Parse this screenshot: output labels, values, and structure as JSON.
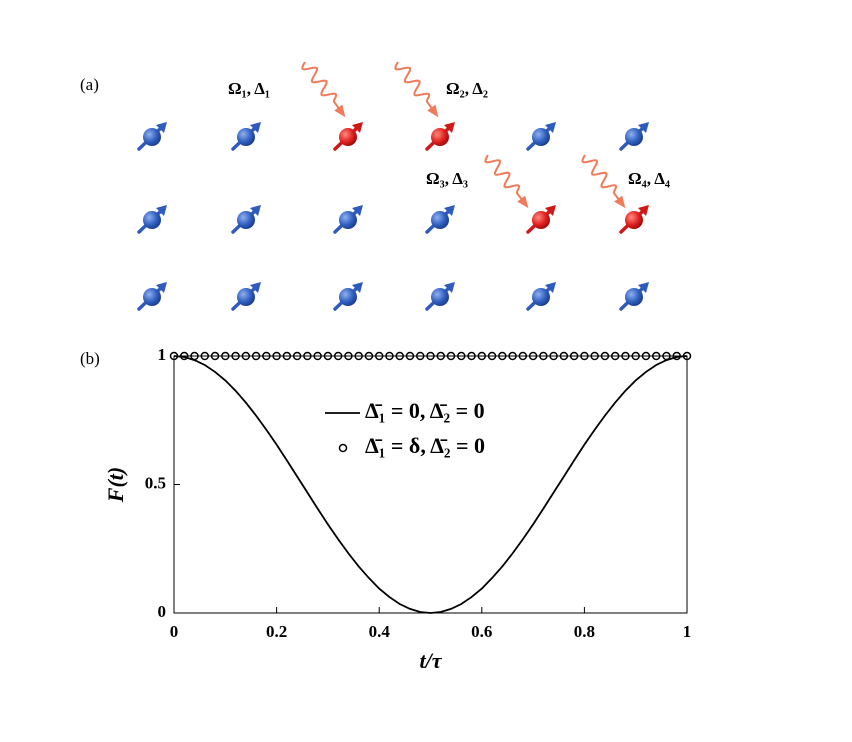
{
  "panel_a": {
    "label": "(a)",
    "lasers": [
      {
        "label": "Ω₁, Δ₁"
      },
      {
        "label": "Ω₂, Δ₂"
      },
      {
        "label": "Ω₃, Δ₃"
      },
      {
        "label": "Ω₄, Δ₄"
      }
    ]
  },
  "chart_data": {
    "type": "line",
    "panel_label": "(b)",
    "xlabel": "t/τ",
    "ylabel": "F(t)",
    "xlim": [
      0,
      1
    ],
    "ylim": [
      0,
      1
    ],
    "xticks": [
      0,
      0.2,
      0.4,
      0.6,
      0.8,
      1
    ],
    "yticks": [
      0,
      0.5,
      1
    ],
    "x": [
      0,
      0.02,
      0.04,
      0.06,
      0.08,
      0.1,
      0.12,
      0.14,
      0.16,
      0.18,
      0.2,
      0.22,
      0.24,
      0.26,
      0.28,
      0.3,
      0.32,
      0.34,
      0.36,
      0.38,
      0.4,
      0.42,
      0.44,
      0.46,
      0.48,
      0.5,
      0.52,
      0.54,
      0.56,
      0.58,
      0.6,
      0.62,
      0.64,
      0.66,
      0.68,
      0.7,
      0.72,
      0.74,
      0.76,
      0.78,
      0.8,
      0.82,
      0.84,
      0.86,
      0.88,
      0.9,
      0.92,
      0.94,
      0.96,
      0.98,
      1
    ],
    "series": [
      {
        "name": "Δ̄₁ = 0,  Δ̄₂ = 0",
        "color": "#000000",
        "marker": "line",
        "values": [
          1,
          0.996,
          0.984,
          0.965,
          0.938,
          0.905,
          0.865,
          0.819,
          0.768,
          0.713,
          0.655,
          0.594,
          0.531,
          0.469,
          0.406,
          0.345,
          0.287,
          0.232,
          0.181,
          0.136,
          0.095,
          0.062,
          0.035,
          0.016,
          0.004,
          0,
          0.004,
          0.016,
          0.035,
          0.062,
          0.095,
          0.136,
          0.181,
          0.232,
          0.287,
          0.345,
          0.406,
          0.469,
          0.531,
          0.594,
          0.655,
          0.713,
          0.768,
          0.819,
          0.865,
          0.905,
          0.938,
          0.965,
          0.984,
          0.996,
          1
        ]
      },
      {
        "name": "Δ̄₁ = δ,  Δ̄₂ = 0",
        "color": "#000000",
        "marker": "circle",
        "values": [
          1,
          1,
          1,
          1,
          1,
          1,
          1,
          1,
          1,
          1,
          1,
          1,
          1,
          1,
          1,
          1,
          1,
          1,
          1,
          1,
          1,
          1,
          1,
          1,
          1,
          1,
          1,
          1,
          1,
          1,
          1,
          1,
          1,
          1,
          1,
          1,
          1,
          1,
          1,
          1,
          1,
          1,
          1,
          1,
          1,
          1,
          1,
          1,
          1,
          1,
          1
        ]
      }
    ]
  }
}
